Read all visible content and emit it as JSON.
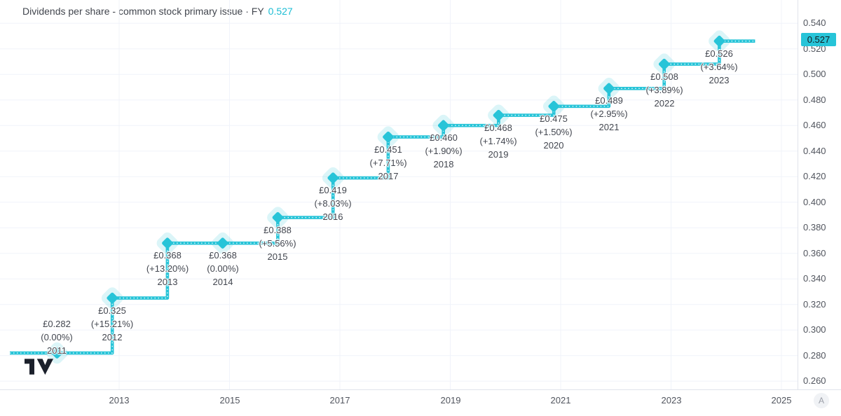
{
  "title": {
    "text": "Dividends per share - common stock primary issue · FY",
    "value": "0.527"
  },
  "chart_data": {
    "type": "line",
    "subtype": "step-line-with-diamond-markers",
    "title": "Dividends per share - common stock primary issue",
    "period": "FY",
    "currency": "GBP",
    "current_value": 0.527,
    "series": [
      {
        "name": "Dividends per share",
        "points": [
          {
            "year": 2011,
            "value": 0.282,
            "label": "£0.282",
            "change": "(0.00%)",
            "label_position": "above"
          },
          {
            "year": 2012,
            "value": 0.325,
            "label": "£0.325",
            "change": "(+15.21%)",
            "label_position": "below"
          },
          {
            "year": 2013,
            "value": 0.368,
            "label": "£0.368",
            "change": "(+13.20%)",
            "label_position": "below"
          },
          {
            "year": 2014,
            "value": 0.368,
            "label": "£0.368",
            "change": "(0.00%)",
            "label_position": "below"
          },
          {
            "year": 2015,
            "value": 0.388,
            "label": "£0.388",
            "change": "(+5.56%)",
            "label_position": "below"
          },
          {
            "year": 2016,
            "value": 0.419,
            "label": "£0.419",
            "change": "(+8.03%)",
            "label_position": "below"
          },
          {
            "year": 2017,
            "value": 0.451,
            "label": "£0.451",
            "change": "(+7.71%)",
            "label_position": "below"
          },
          {
            "year": 2018,
            "value": 0.46,
            "label": "£0.460",
            "change": "(+1.90%)",
            "label_position": "below"
          },
          {
            "year": 2019,
            "value": 0.468,
            "label": "£0.468",
            "change": "(+1.74%)",
            "label_position": "below"
          },
          {
            "year": 2020,
            "value": 0.475,
            "label": "£0.475",
            "change": "(+1.50%)",
            "label_position": "below"
          },
          {
            "year": 2021,
            "value": 0.489,
            "label": "£0.489",
            "change": "(+2.95%)",
            "label_position": "below"
          },
          {
            "year": 2022,
            "value": 0.508,
            "label": "£0.508",
            "change": "(+3.89%)",
            "label_position": "below"
          },
          {
            "year": 2023,
            "value": 0.526,
            "label": "£0.526",
            "change": "(+3.64%)",
            "label_position": "below"
          }
        ]
      }
    ],
    "y_axis": {
      "side": "right",
      "min": 0.26,
      "max": 0.54,
      "step": 0.02,
      "ticks": [
        {
          "v": 0.26,
          "label": "0.260"
        },
        {
          "v": 0.28,
          "label": "0.280"
        },
        {
          "v": 0.3,
          "label": "0.300"
        },
        {
          "v": 0.32,
          "label": "0.320"
        },
        {
          "v": 0.34,
          "label": "0.340"
        },
        {
          "v": 0.36,
          "label": "0.360"
        },
        {
          "v": 0.38,
          "label": "0.380"
        },
        {
          "v": 0.4,
          "label": "0.400"
        },
        {
          "v": 0.42,
          "label": "0.420"
        },
        {
          "v": 0.44,
          "label": "0.440"
        },
        {
          "v": 0.46,
          "label": "0.460"
        },
        {
          "v": 0.48,
          "label": "0.480"
        },
        {
          "v": 0.5,
          "label": "0.500"
        },
        {
          "v": 0.52,
          "label": "0.520"
        },
        {
          "v": 0.54,
          "label": "0.540"
        }
      ],
      "current": {
        "value": 0.527,
        "label": "0.527"
      }
    },
    "x_axis": {
      "ticks": [
        {
          "year": 2013,
          "label": "2013"
        },
        {
          "year": 2015,
          "label": "2015"
        },
        {
          "year": 2017,
          "label": "2017"
        },
        {
          "year": 2019,
          "label": "2019"
        },
        {
          "year": 2021,
          "label": "2021"
        },
        {
          "year": 2023,
          "label": "2023"
        },
        {
          "year": 2025,
          "label": "2025"
        }
      ]
    },
    "grid": true,
    "legend": false,
    "colors": {
      "line": "#27c4d8",
      "marker": "#27c4d8",
      "halo": "rgba(39,196,216,0.17)",
      "line_dots": "#ffffff",
      "badge_bg": "#27c4d8",
      "badge_text": "#15191e",
      "grid": "#f0f3fa",
      "axis_text": "#51555e",
      "label_text": "#42464f"
    }
  },
  "axis_controls": {
    "auto_scale_label": "A"
  },
  "logo": {
    "name": "TradingView"
  }
}
